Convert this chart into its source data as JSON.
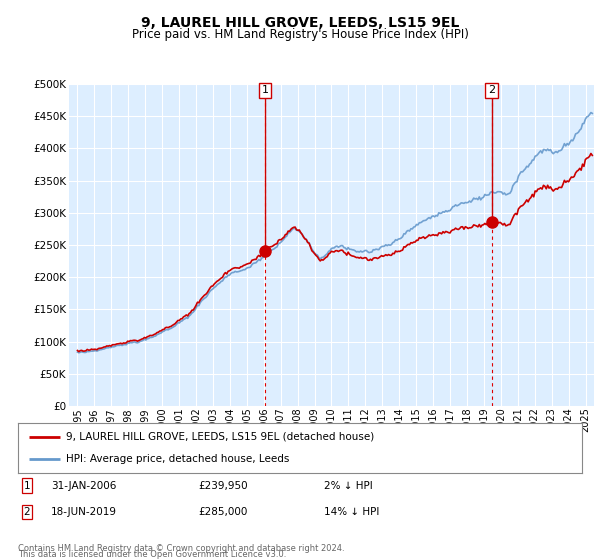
{
  "title": "9, LAUREL HILL GROVE, LEEDS, LS15 9EL",
  "subtitle": "Price paid vs. HM Land Registry's House Price Index (HPI)",
  "title_fontsize": 10,
  "subtitle_fontsize": 8.5,
  "ylim": [
    0,
    500000
  ],
  "yticks": [
    0,
    50000,
    100000,
    150000,
    200000,
    250000,
    300000,
    350000,
    400000,
    450000,
    500000
  ],
  "ytick_labels": [
    "£0",
    "£50K",
    "£100K",
    "£150K",
    "£200K",
    "£250K",
    "£300K",
    "£350K",
    "£400K",
    "£450K",
    "£500K"
  ],
  "xlim_start": 1994.5,
  "xlim_end": 2025.5,
  "background_color": "#ffffff",
  "plot_bg_color": "#ddeeff",
  "grid_color": "#ffffff",
  "transaction1_x": 2006.08,
  "transaction1_y": 239950,
  "transaction1_label": "1",
  "transaction2_x": 2019.46,
  "transaction2_y": 285000,
  "transaction2_label": "2",
  "legend_line1": "9, LAUREL HILL GROVE, LEEDS, LS15 9EL (detached house)",
  "legend_line2": "HPI: Average price, detached house, Leeds",
  "footer_line1": "Contains HM Land Registry data © Crown copyright and database right 2024.",
  "footer_line2": "This data is licensed under the Open Government Licence v3.0.",
  "hpi_color": "#6699cc",
  "property_color": "#cc0000",
  "marker_box_color": "#cc0000",
  "vline_color": "#dd0000",
  "hpi_segments": [
    [
      1995.0,
      83000
    ],
    [
      1995.1,
      82000
    ],
    [
      1995.2,
      84000
    ],
    [
      1995.4,
      83500
    ],
    [
      1995.6,
      85000
    ],
    [
      1995.8,
      84000
    ],
    [
      1996.0,
      86000
    ],
    [
      1996.2,
      88000
    ],
    [
      1996.4,
      87000
    ],
    [
      1996.6,
      89000
    ],
    [
      1996.8,
      90000
    ],
    [
      1997.0,
      92000
    ],
    [
      1997.2,
      93000
    ],
    [
      1997.4,
      94000
    ],
    [
      1997.6,
      95000
    ],
    [
      1997.8,
      96000
    ],
    [
      1998.0,
      98000
    ],
    [
      1998.2,
      97000
    ],
    [
      1998.4,
      99000
    ],
    [
      1998.6,
      100000
    ],
    [
      1998.8,
      101000
    ],
    [
      1999.0,
      103000
    ],
    [
      1999.2,
      105000
    ],
    [
      1999.4,
      107000
    ],
    [
      1999.6,
      110000
    ],
    [
      1999.8,
      112000
    ],
    [
      2000.0,
      115000
    ],
    [
      2000.2,
      118000
    ],
    [
      2000.4,
      120000
    ],
    [
      2000.6,
      122000
    ],
    [
      2000.8,
      125000
    ],
    [
      2001.0,
      128000
    ],
    [
      2001.2,
      132000
    ],
    [
      2001.4,
      136000
    ],
    [
      2001.6,
      140000
    ],
    [
      2001.8,
      145000
    ],
    [
      2002.0,
      152000
    ],
    [
      2002.2,
      158000
    ],
    [
      2002.4,
      164000
    ],
    [
      2002.6,
      170000
    ],
    [
      2002.8,
      176000
    ],
    [
      2003.0,
      182000
    ],
    [
      2003.2,
      187000
    ],
    [
      2003.4,
      192000
    ],
    [
      2003.6,
      196000
    ],
    [
      2003.8,
      200000
    ],
    [
      2004.0,
      204000
    ],
    [
      2004.2,
      207000
    ],
    [
      2004.4,
      209000
    ],
    [
      2004.6,
      210000
    ],
    [
      2004.8,
      211000
    ],
    [
      2005.0,
      213000
    ],
    [
      2005.2,
      216000
    ],
    [
      2005.4,
      220000
    ],
    [
      2005.6,
      224000
    ],
    [
      2005.8,
      228000
    ],
    [
      2006.0,
      233000
    ],
    [
      2006.2,
      238000
    ],
    [
      2006.4,
      242000
    ],
    [
      2006.6,
      246000
    ],
    [
      2006.8,
      250000
    ],
    [
      2007.0,
      256000
    ],
    [
      2007.2,
      262000
    ],
    [
      2007.4,
      268000
    ],
    [
      2007.6,
      272000
    ],
    [
      2007.8,
      275000
    ],
    [
      2008.0,
      272000
    ],
    [
      2008.2,
      268000
    ],
    [
      2008.4,
      262000
    ],
    [
      2008.6,
      255000
    ],
    [
      2008.8,
      248000
    ],
    [
      2009.0,
      238000
    ],
    [
      2009.2,
      232000
    ],
    [
      2009.4,
      228000
    ],
    [
      2009.6,
      232000
    ],
    [
      2009.8,
      238000
    ],
    [
      2010.0,
      245000
    ],
    [
      2010.2,
      248000
    ],
    [
      2010.4,
      250000
    ],
    [
      2010.6,
      248000
    ],
    [
      2010.8,
      246000
    ],
    [
      2011.0,
      244000
    ],
    [
      2011.2,
      242000
    ],
    [
      2011.4,
      240000
    ],
    [
      2011.6,
      240000
    ],
    [
      2011.8,
      241000
    ],
    [
      2012.0,
      240000
    ],
    [
      2012.2,
      239000
    ],
    [
      2012.4,
      240000
    ],
    [
      2012.6,
      242000
    ],
    [
      2012.8,
      244000
    ],
    [
      2013.0,
      246000
    ],
    [
      2013.2,
      248000
    ],
    [
      2013.4,
      250000
    ],
    [
      2013.6,
      253000
    ],
    [
      2013.8,
      256000
    ],
    [
      2014.0,
      260000
    ],
    [
      2014.2,
      264000
    ],
    [
      2014.4,
      268000
    ],
    [
      2014.6,
      272000
    ],
    [
      2014.8,
      276000
    ],
    [
      2015.0,
      280000
    ],
    [
      2015.2,
      284000
    ],
    [
      2015.4,
      288000
    ],
    [
      2015.6,
      290000
    ],
    [
      2015.8,
      292000
    ],
    [
      2016.0,
      294000
    ],
    [
      2016.2,
      296000
    ],
    [
      2016.4,
      298000
    ],
    [
      2016.6,
      300000
    ],
    [
      2016.8,
      302000
    ],
    [
      2017.0,
      305000
    ],
    [
      2017.2,
      308000
    ],
    [
      2017.4,
      311000
    ],
    [
      2017.6,
      314000
    ],
    [
      2017.8,
      316000
    ],
    [
      2018.0,
      318000
    ],
    [
      2018.2,
      320000
    ],
    [
      2018.4,
      321000
    ],
    [
      2018.6,
      322000
    ],
    [
      2018.8,
      323000
    ],
    [
      2019.0,
      325000
    ],
    [
      2019.2,
      327000
    ],
    [
      2019.4,
      329000
    ],
    [
      2019.6,
      332000
    ],
    [
      2019.8,
      334000
    ],
    [
      2020.0,
      333000
    ],
    [
      2020.2,
      330000
    ],
    [
      2020.4,
      328000
    ],
    [
      2020.6,
      335000
    ],
    [
      2020.8,
      345000
    ],
    [
      2021.0,
      355000
    ],
    [
      2021.2,
      362000
    ],
    [
      2021.4,
      368000
    ],
    [
      2021.6,
      374000
    ],
    [
      2021.8,
      380000
    ],
    [
      2022.0,
      386000
    ],
    [
      2022.2,
      392000
    ],
    [
      2022.4,
      398000
    ],
    [
      2022.6,
      400000
    ],
    [
      2022.8,
      398000
    ],
    [
      2023.0,
      395000
    ],
    [
      2023.2,
      393000
    ],
    [
      2023.4,
      395000
    ],
    [
      2023.6,
      398000
    ],
    [
      2023.8,
      402000
    ],
    [
      2024.0,
      408000
    ],
    [
      2024.2,
      415000
    ],
    [
      2024.4,
      422000
    ],
    [
      2024.6,
      428000
    ],
    [
      2024.8,
      435000
    ],
    [
      2025.0,
      445000
    ],
    [
      2025.2,
      455000
    ],
    [
      2025.4,
      460000
    ]
  ]
}
